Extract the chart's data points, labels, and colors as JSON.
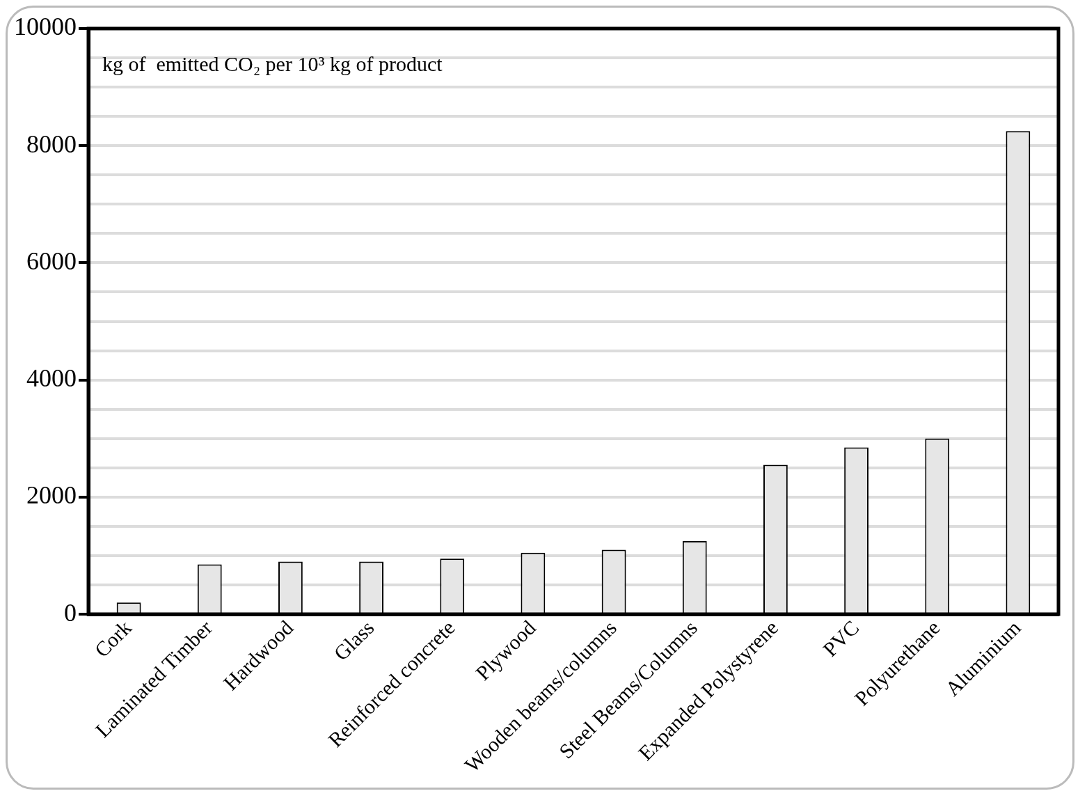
{
  "chart_data": {
    "type": "bar",
    "annotations": [
      "kg of  emitted CO₂ per 10³ kg of product"
    ],
    "categories": [
      "Cork",
      "Laminated Timber",
      "Hardwood",
      "Glass",
      "Reinforced concrete",
      "Plywood",
      "Wooden beams/columns",
      "Steel Beams/Columns",
      "Expanded Polystyrene",
      "PVC",
      "Polyurethane",
      "Aluminium"
    ],
    "values": [
      200,
      850,
      900,
      900,
      950,
      1050,
      1100,
      1250,
      2550,
      2850,
      3000,
      8250
    ],
    "color": "#e6e6e6",
    "ylim": [
      0,
      10000
    ],
    "yticks": [
      0,
      {
        "value": 500,
        "label": null
      },
      {
        "value": 1000,
        "label": null
      },
      {
        "value": 1500,
        "label": null
      },
      2000,
      {
        "value": 2500,
        "label": null
      },
      {
        "value": 3000,
        "label": null
      },
      {
        "value": 3500,
        "label": null
      },
      4000,
      {
        "value": 4500,
        "label": null
      },
      {
        "value": 5000,
        "label": null
      },
      {
        "value": 5500,
        "label": null
      },
      6000,
      {
        "value": 6500,
        "label": null
      },
      {
        "value": 7000,
        "label": null
      },
      {
        "value": 7500,
        "label": null
      },
      8000,
      {
        "value": 8500,
        "label": null
      },
      {
        "value": 9000,
        "label": null
      },
      {
        "value": 9500,
        "label": null
      },
      10000
    ],
    "grid": "y",
    "legend": false
  }
}
